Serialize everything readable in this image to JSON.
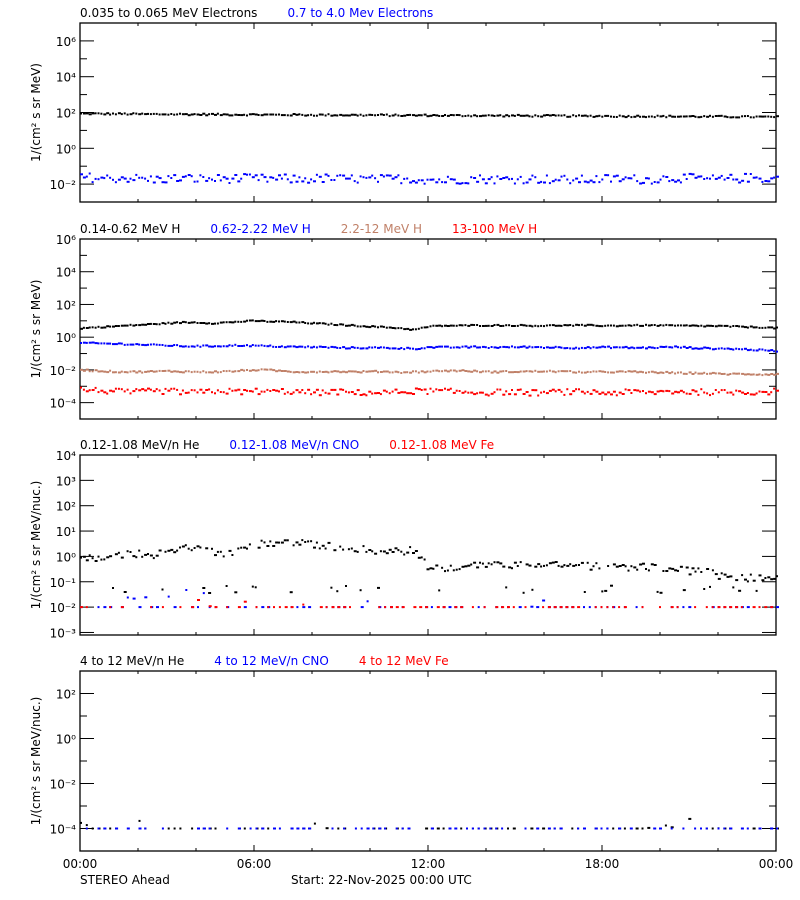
{
  "spacecraft_label": "STEREO Ahead",
  "start_label": "Start: 22-Nov-2025 00:00 UTC",
  "x_axis": {
    "tick_labels": [
      "00:00",
      "06:00",
      "12:00",
      "18:00",
      "00:00"
    ],
    "range_hours": [
      0,
      24
    ],
    "major_step_hours": 6,
    "minor_step_hours": 2
  },
  "chart_data": [
    {
      "type": "scatter",
      "title": "Electrons",
      "legend": [
        {
          "label": "0.035 to 0.065 MeV Electrons",
          "color": "#000000"
        },
        {
          "label": "0.7 to 4.0 Mev Electrons",
          "color": "#0000ff"
        }
      ],
      "ylabel": "1/(cm² s sr MeV)",
      "yscale": "log",
      "ylim_exp": [
        -3,
        7
      ],
      "major_tick_exps": [
        -2,
        0,
        2,
        4,
        6
      ],
      "tick_labels": [
        "10⁻²",
        "10⁰",
        "10²",
        "10⁴",
        "10⁶"
      ],
      "frame": {
        "top": 23,
        "bottom": 202
      },
      "series": [
        {
          "name": "0.035 to 0.065 MeV Electrons",
          "color": "#000000",
          "jitter": 0.05,
          "log10_values": [
            1.93,
            1.93,
            1.92,
            1.92,
            1.91,
            1.9,
            1.9,
            1.9,
            1.89,
            1.89,
            1.88,
            1.88,
            1.88,
            1.87,
            1.87,
            1.87,
            1.86,
            1.86,
            1.86,
            1.85,
            1.85,
            1.85,
            1.84,
            1.84,
            1.84,
            1.83,
            1.83,
            1.83,
            1.82,
            1.82,
            1.82,
            1.81,
            1.81,
            1.81,
            1.8,
            1.8,
            1.8,
            1.79,
            1.79,
            1.79,
            1.78,
            1.78,
            1.78,
            1.77,
            1.77,
            1.76,
            1.76,
            1.75,
            1.75
          ]
        },
        {
          "name": "0.7 to 4.0 Mev Electrons",
          "color": "#0000ff",
          "jitter": 0.25,
          "log10_values": [
            -1.6,
            -1.65,
            -1.7,
            -1.65,
            -1.7,
            -1.75,
            -1.7,
            -1.68,
            -1.7,
            -1.72,
            -1.7,
            -1.68,
            -1.7,
            -1.72,
            -1.7,
            -1.75,
            -1.7,
            -1.68,
            -1.72,
            -1.7,
            -1.75,
            -1.72,
            -1.7,
            -1.72,
            -1.75,
            -1.8,
            -1.75,
            -1.7,
            -1.72,
            -1.75,
            -1.72,
            -1.7,
            -1.72,
            -1.75,
            -1.78,
            -1.75,
            -1.72,
            -1.7,
            -1.72,
            -1.75,
            -1.7,
            -1.65,
            -1.68,
            -1.72,
            -1.75,
            -1.7,
            -1.65,
            -1.68,
            -1.7
          ]
        }
      ]
    },
    {
      "type": "scatter",
      "title": "Protons",
      "legend": [
        {
          "label": "0.14-0.62 MeV H",
          "color": "#000000"
        },
        {
          "label": "0.62-2.22 MeV H",
          "color": "#0000ff"
        },
        {
          "label": "2.2-12 MeV H",
          "color": "#c08068"
        },
        {
          "label": "13-100 MeV H",
          "color": "#ff0000"
        }
      ],
      "ylabel": "1/(cm² s sr MeV)",
      "yscale": "log",
      "ylim_exp": [
        -5,
        6
      ],
      "major_tick_exps": [
        -4,
        -2,
        0,
        2,
        4,
        6
      ],
      "tick_labels": [
        "10⁻⁴",
        "10⁻²",
        "10⁰",
        "10²",
        "10⁴",
        "10⁶"
      ],
      "frame": {
        "top": 239,
        "bottom": 419
      },
      "series": [
        {
          "name": "0.14-0.62 MeV H",
          "color": "#000000",
          "jitter": 0.04,
          "log10_values": [
            0.55,
            0.6,
            0.65,
            0.7,
            0.75,
            0.8,
            0.85,
            0.9,
            0.9,
            0.85,
            0.9,
            0.95,
            1.0,
            0.95,
            0.95,
            0.9,
            0.85,
            0.8,
            0.75,
            0.7,
            0.65,
            0.6,
            0.55,
            0.45,
            0.65,
            0.7,
            0.7,
            0.72,
            0.72,
            0.72,
            0.72,
            0.7,
            0.7,
            0.72,
            0.72,
            0.72,
            0.7,
            0.7,
            0.72,
            0.72,
            0.72,
            0.7,
            0.7,
            0.68,
            0.68,
            0.65,
            0.62,
            0.6,
            0.55
          ]
        },
        {
          "name": "0.62-2.22 MeV H",
          "color": "#0000ff",
          "jitter": 0.05,
          "log10_values": [
            -0.35,
            -0.38,
            -0.4,
            -0.42,
            -0.45,
            -0.48,
            -0.5,
            -0.55,
            -0.55,
            -0.55,
            -0.52,
            -0.5,
            -0.52,
            -0.55,
            -0.58,
            -0.6,
            -0.6,
            -0.62,
            -0.65,
            -0.65,
            -0.65,
            -0.65,
            -0.68,
            -0.7,
            -0.62,
            -0.62,
            -0.62,
            -0.6,
            -0.62,
            -0.62,
            -0.6,
            -0.6,
            -0.62,
            -0.62,
            -0.65,
            -0.65,
            -0.62,
            -0.62,
            -0.65,
            -0.65,
            -0.62,
            -0.6,
            -0.65,
            -0.68,
            -0.7,
            -0.72,
            -0.75,
            -0.8,
            -0.85
          ]
        },
        {
          "name": "2.2-12 MeV H",
          "color": "#c08068",
          "jitter": 0.05,
          "log10_values": [
            -2.0,
            -2.05,
            -2.1,
            -2.12,
            -2.12,
            -2.1,
            -2.08,
            -2.1,
            -2.12,
            -2.12,
            -2.1,
            -2.05,
            -2.0,
            -2.02,
            -2.08,
            -2.12,
            -2.12,
            -2.1,
            -2.1,
            -2.12,
            -2.1,
            -2.1,
            -2.15,
            -2.12,
            -2.1,
            -2.05,
            -2.05,
            -2.08,
            -2.12,
            -2.12,
            -2.1,
            -2.1,
            -2.08,
            -2.1,
            -2.12,
            -2.15,
            -2.12,
            -2.12,
            -2.12,
            -2.15,
            -2.15,
            -2.2,
            -2.2,
            -2.2,
            -2.25,
            -2.25,
            -2.25,
            -2.28,
            -2.25
          ]
        },
        {
          "name": "13-100 MeV H",
          "color": "#ff0000",
          "jitter": 0.18,
          "log10_values": [
            -3.2,
            -3.25,
            -3.3,
            -3.35,
            -3.35,
            -3.3,
            -3.3,
            -3.35,
            -3.4,
            -3.3,
            -3.3,
            -3.35,
            -3.3,
            -3.35,
            -3.3,
            -3.35,
            -3.4,
            -3.35,
            -3.35,
            -3.4,
            -3.4,
            -3.4,
            -3.35,
            -3.3,
            -3.3,
            -3.3,
            -3.35,
            -3.35,
            -3.4,
            -3.35,
            -3.35,
            -3.4,
            -3.4,
            -3.35,
            -3.35,
            -3.35,
            -3.4,
            -3.4,
            -3.35,
            -3.4,
            -3.35,
            -3.3,
            -3.35,
            -3.35,
            -3.4,
            -3.35,
            -3.35,
            -3.35,
            -3.3
          ]
        }
      ]
    },
    {
      "type": "scatter",
      "title": "Heavy ions low energy",
      "legend": [
        {
          "label": "0.12-1.08 MeV/n He",
          "color": "#000000"
        },
        {
          "label": "0.12-1.08 MeV/n CNO",
          "color": "#0000ff"
        },
        {
          "label": "0.12-1.08 MeV Fe",
          "color": "#ff0000"
        }
      ],
      "ylabel": "1/(cm² s sr MeV/nuc.)",
      "yscale": "log",
      "ylim_exp": [
        -3.1,
        4
      ],
      "major_tick_exps": [
        -3,
        -2,
        -1,
        0,
        1,
        2,
        3,
        4
      ],
      "tick_labels": [
        "10⁻³",
        "10⁻²",
        "10⁻¹",
        "10⁰",
        "10¹",
        "10²",
        "10³",
        "10⁴"
      ],
      "frame": {
        "top": 455,
        "bottom": 635
      },
      "series": [
        {
          "name": "0.12-1.08 MeV/n He",
          "color": "#000000",
          "jitter": 0.15,
          "log10_values": [
            0.05,
            -0.15,
            0.0,
            0.1,
            0.1,
            0.08,
            0.15,
            0.3,
            0.35,
            0.2,
            0.05,
            0.4,
            0.45,
            0.5,
            0.55,
            0.55,
            0.45,
            0.4,
            0.35,
            0.3,
            0.25,
            0.22,
            0.2,
            0.25,
            -0.45,
            -0.5,
            -0.5,
            -0.3,
            -0.3,
            -0.35,
            -0.32,
            -0.3,
            -0.28,
            -0.3,
            -0.4,
            -0.4,
            -0.35,
            -0.45,
            -0.4,
            -0.4,
            -0.5,
            -0.5,
            -0.6,
            -0.55,
            -0.75,
            -0.8,
            -0.85,
            -0.9,
            -0.9
          ],
          "floor_log10": -1.3
        },
        {
          "name": "0.12-1.08 MeV/n CNO",
          "color": "#0000ff",
          "jitter": 0.0,
          "floor_log10": -2.0,
          "sparse": true,
          "log10_values": [
            -2.0,
            -2.0,
            -1.7,
            -1.6,
            -1.7,
            -1.5,
            -1.6,
            -1.3,
            -1.4,
            -1.5,
            -1.6,
            -1.7,
            -2.0,
            -2.0,
            -2.0,
            -2.0,
            -2.0,
            -2.0,
            -2.0,
            -2.0,
            -1.7,
            -2.0,
            -2.0,
            -2.0,
            -2.0,
            -2.0,
            -2.0,
            -2.0,
            -2.0,
            -2.0,
            -2.0,
            -2.0,
            -1.7,
            -2.0,
            -2.0,
            -2.0,
            -2.0,
            -2.0,
            -2.0,
            -2.0,
            -2.0,
            -2.0,
            -2.0,
            -2.0,
            -2.0,
            -2.0,
            -2.0,
            -2.0,
            -2.0
          ]
        },
        {
          "name": "0.12-1.08 MeV Fe",
          "color": "#ff0000",
          "jitter": 0.0,
          "floor_log10": -2.0,
          "sparse": true,
          "log10_values": [
            -2.0,
            -2.0,
            -2.0,
            -2.0,
            -2.0,
            -1.7,
            -2.0,
            -2.0,
            -1.7,
            -2.0,
            -2.0,
            -1.7,
            -2.0,
            -2.0,
            -2.0,
            -2.0,
            -1.7,
            -2.0,
            -2.0,
            -2.0,
            -2.0,
            -2.0,
            -2.0,
            -2.0,
            -2.0,
            -2.0,
            -2.0,
            -2.0,
            -2.0,
            -2.0,
            -2.0,
            -2.0,
            -2.0,
            -2.0,
            -2.0,
            -2.0,
            -2.0,
            -2.0,
            -2.0,
            -2.0,
            -2.0,
            -2.0,
            -2.0,
            -2.0,
            -2.0,
            -2.0,
            -2.0,
            -2.0,
            -2.0
          ]
        }
      ]
    },
    {
      "type": "scatter",
      "title": "Heavy ions high energy",
      "legend": [
        {
          "label": "4 to 12 MeV/n He",
          "color": "#000000"
        },
        {
          "label": "4 to 12 MeV/n CNO",
          "color": "#0000ff"
        },
        {
          "label": "4 to 12 MeV Fe",
          "color": "#ff0000"
        }
      ],
      "ylabel": "1/(cm² s sr MeV/nuc.)",
      "yscale": "log",
      "ylim_exp": [
        -5,
        3
      ],
      "major_tick_exps": [
        -4,
        -2,
        0,
        2
      ],
      "tick_labels": [
        "10⁻⁴",
        "10⁻²",
        "10⁰",
        "10²"
      ],
      "frame": {
        "top": 671,
        "bottom": 851
      },
      "series": [
        {
          "name": "4 to 12 MeV/n He",
          "color": "#000000",
          "jitter": 0.0,
          "floor_log10": -4.0,
          "sparse": true,
          "log10_values": [
            -3.75,
            -4.0,
            -4.0,
            -4.0,
            -3.65,
            -4.0,
            -4.0,
            -4.0,
            -4.0,
            -4.0,
            -3.65,
            -4.0,
            -4.0,
            -4.0,
            -4.0,
            -3.85,
            -3.75,
            -4.0,
            -4.0,
            -4.0,
            -4.0,
            -4.0,
            -4.0,
            -4.0,
            -4.0,
            -4.0,
            -4.0,
            -4.0,
            -4.0,
            -4.0,
            -4.0,
            -4.0,
            -4.0,
            -4.0,
            -4.0,
            -4.0,
            -4.0,
            -4.0,
            -4.0,
            -4.0,
            -3.8,
            -4.0,
            -3.55,
            -3.7,
            -4.0,
            -4.0,
            -4.0,
            -4.0,
            -4.0
          ]
        },
        {
          "name": "4 to 12 MeV/n CNO",
          "color": "#0000ff",
          "jitter": 0.0,
          "floor_log10": -4.0,
          "sparse": true,
          "log10_values": [
            -5,
            -5,
            -5,
            -5,
            -5,
            -5,
            -5,
            -5,
            -5,
            -5,
            -5,
            -5,
            -4.0,
            -5,
            -5,
            -5,
            -5,
            -5,
            -5,
            -5,
            -5,
            -5,
            -5,
            -5,
            -5,
            -5,
            -5,
            -5,
            -5,
            -5,
            -5,
            -5,
            -5,
            -5,
            -4.0,
            -5,
            -5,
            -5,
            -5,
            -5,
            -5,
            -5,
            -5,
            -5,
            -5,
            -5,
            -5,
            -5,
            -5
          ]
        },
        {
          "name": "4 to 12 MeV Fe",
          "color": "#ff0000",
          "jitter": 0.0,
          "sparse": true,
          "log10_values": []
        }
      ]
    }
  ]
}
